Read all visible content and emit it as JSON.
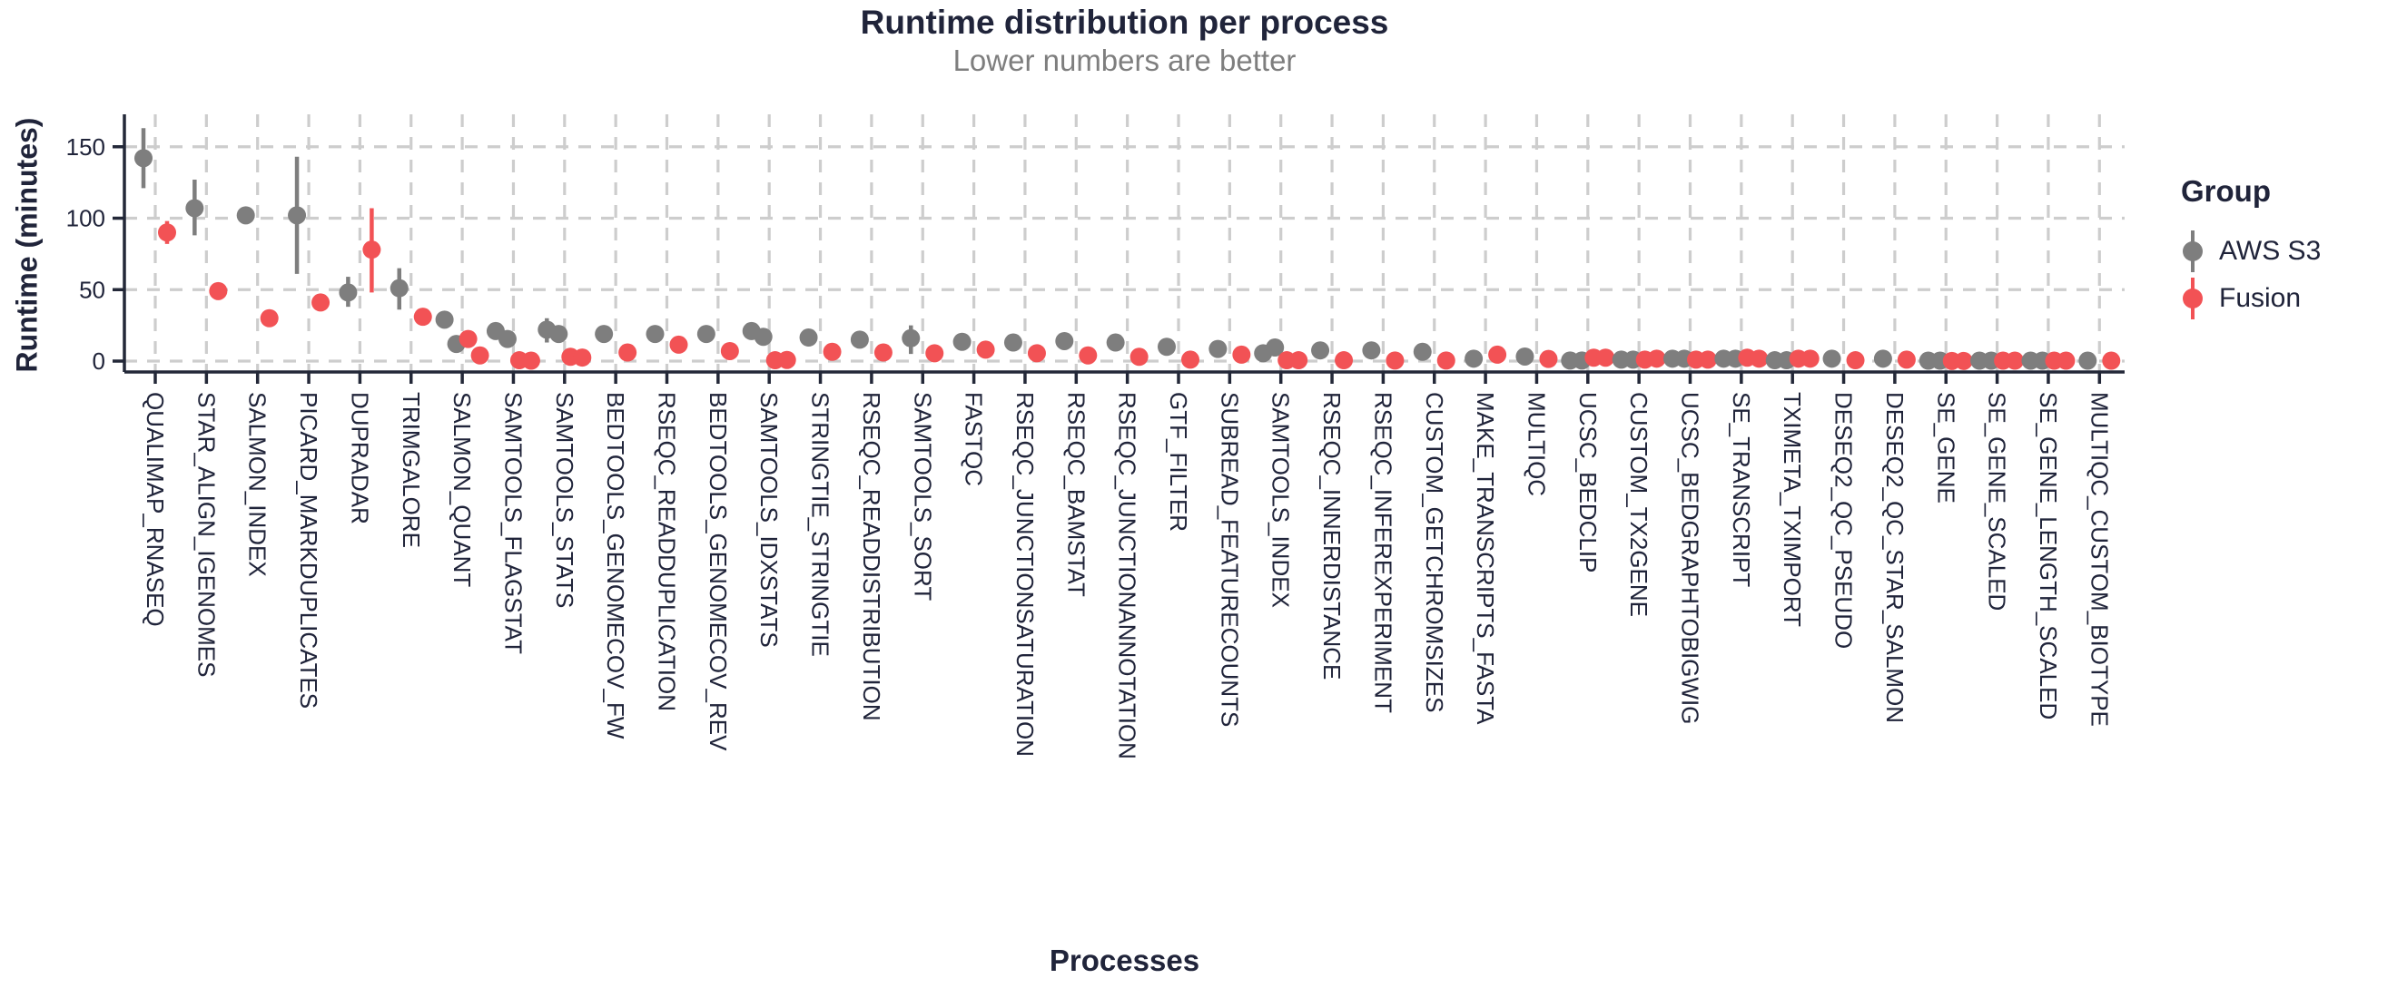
{
  "colors": {
    "aws_s3": "#7E7E7E",
    "fusion": "#F25255",
    "grid": "#CDCDCD",
    "axis": "#232838",
    "tick_label": "#20243A",
    "title": "#20243A",
    "subtitle": "#7E7E7E"
  },
  "chart_data": {
    "type": "scatter",
    "subtype": "dodged-pointrange",
    "title": "Runtime distribution per process",
    "subtitle": "Lower numbers are better",
    "xlabel": "Processes",
    "ylabel": "Runtime (minutes)",
    "y_ticks": [
      0,
      50,
      100,
      150
    ],
    "ylim": [
      0,
      172
    ],
    "grid": "dashed, major only",
    "legend": {
      "title": "Group",
      "position": "right",
      "entries": [
        {
          "label": "AWS S3",
          "color_key": "aws_s3"
        },
        {
          "label": "Fusion",
          "color_key": "fusion"
        }
      ]
    },
    "categories": [
      "QUALIMAP_RNASEQ",
      "STAR_ALIGN_IGENOMES",
      "SALMON_INDEX",
      "PICARD_MARKDUPLICATES",
      "DUPRADAR",
      "TRIMGALORE",
      "SALMON_QUANT",
      "SAMTOOLS_FLAGSTAT",
      "SAMTOOLS_STATS",
      "BEDTOOLS_GENOMECOV_FW",
      "RSEQC_READDUPLICATION",
      "BEDTOOLS_GENOMECOV_REV",
      "SAMTOOLS_IDXSTATS",
      "STRINGTIE_STRINGTIE",
      "RSEQC_READDISTRIBUTION",
      "SAMTOOLS_SORT",
      "FASTQC",
      "RSEQC_JUNCTIONSATURATION",
      "RSEQC_BAMSTAT",
      "RSEQC_JUNCTIONANNOTATION",
      "GTF_FILTER",
      "SUBREAD_FEATURECOUNTS",
      "SAMTOOLS_INDEX",
      "RSEQC_INNERDISTANCE",
      "RSEQC_INFEREXPERIMENT",
      "CUSTOM_GETCHROMSIZES",
      "MAKE_TRANSCRIPTS_FASTA",
      "MULTIQC",
      "UCSC_BEDCLIP",
      "CUSTOM_TX2GENE",
      "UCSC_BEDGRAPHTOBIGWIG",
      "SE_TRANSCRIPT",
      "TXIMETA_TXIMPORT",
      "DESEQ2_QC_PSEUDO",
      "DESEQ2_QC_STAR_SALMON",
      "SE_GENE",
      "SE_GENE_SCALED",
      "SE_GENE_LENGTH_SCALED",
      "MULTIQC_CUSTOM_BIOTYPE"
    ],
    "points": [
      {
        "process": "QUALIMAP_RNASEQ",
        "aws_s3": {
          "values": [
            142
          ],
          "range": [
            121,
            163
          ]
        },
        "fusion": {
          "values": [
            90
          ],
          "range": [
            82,
            98
          ]
        }
      },
      {
        "process": "STAR_ALIGN_IGENOMES",
        "aws_s3": {
          "values": [
            107
          ],
          "range": [
            88,
            127
          ]
        },
        "fusion": {
          "values": [
            49
          ]
        }
      },
      {
        "process": "SALMON_INDEX",
        "aws_s3": {
          "values": [
            102
          ]
        },
        "fusion": {
          "values": [
            30
          ]
        }
      },
      {
        "process": "PICARD_MARKDUPLICATES",
        "aws_s3": {
          "values": [
            102
          ],
          "range": [
            61,
            143
          ]
        },
        "fusion": {
          "values": [
            41
          ]
        }
      },
      {
        "process": "DUPRADAR",
        "aws_s3": {
          "values": [
            48
          ],
          "range": [
            38,
            59
          ]
        },
        "fusion": {
          "values": [
            78
          ],
          "range": [
            48,
            107
          ]
        }
      },
      {
        "process": "TRIMGALORE",
        "aws_s3": {
          "values": [
            51
          ],
          "range": [
            36,
            65
          ]
        },
        "fusion": {
          "values": [
            31
          ]
        }
      },
      {
        "process": "SALMON_QUANT",
        "aws_s3": {
          "values": [
            29,
            12
          ]
        },
        "fusion": {
          "values": [
            15.5,
            4
          ]
        }
      },
      {
        "process": "SAMTOOLS_FLAGSTAT",
        "aws_s3": {
          "values": [
            21,
            15.5
          ]
        },
        "fusion": {
          "values": [
            0.6,
            0.3
          ]
        }
      },
      {
        "process": "SAMTOOLS_STATS",
        "aws_s3": {
          "values": [
            22,
            19
          ],
          "range": [
            13,
            30
          ]
        },
        "fusion": {
          "values": [
            3,
            2.5
          ]
        }
      },
      {
        "process": "BEDTOOLS_GENOMECOV_FW",
        "aws_s3": {
          "values": [
            19
          ]
        },
        "fusion": {
          "values": [
            6
          ]
        }
      },
      {
        "process": "RSEQC_READDUPLICATION",
        "aws_s3": {
          "values": [
            19
          ]
        },
        "fusion": {
          "values": [
            11.5
          ]
        }
      },
      {
        "process": "BEDTOOLS_GENOMECOV_REV",
        "aws_s3": {
          "values": [
            19
          ]
        },
        "fusion": {
          "values": [
            7
          ]
        }
      },
      {
        "process": "SAMTOOLS_IDXSTATS",
        "aws_s3": {
          "values": [
            21,
            17
          ]
        },
        "fusion": {
          "values": [
            0.6,
            0.8
          ]
        }
      },
      {
        "process": "STRINGTIE_STRINGTIE",
        "aws_s3": {
          "values": [
            16.5
          ]
        },
        "fusion": {
          "values": [
            6.5
          ]
        }
      },
      {
        "process": "RSEQC_READDISTRIBUTION",
        "aws_s3": {
          "values": [
            15
          ]
        },
        "fusion": {
          "values": [
            6
          ]
        }
      },
      {
        "process": "SAMTOOLS_SORT",
        "aws_s3": {
          "values": [
            16
          ],
          "range": [
            5,
            25
          ]
        },
        "fusion": {
          "values": [
            5.5
          ]
        }
      },
      {
        "process": "FASTQC",
        "aws_s3": {
          "values": [
            13.5
          ]
        },
        "fusion": {
          "values": [
            8
          ]
        }
      },
      {
        "process": "RSEQC_JUNCTIONSATURATION",
        "aws_s3": {
          "values": [
            13
          ]
        },
        "fusion": {
          "values": [
            5.5
          ]
        }
      },
      {
        "process": "RSEQC_BAMSTAT",
        "aws_s3": {
          "values": [
            14
          ]
        },
        "fusion": {
          "values": [
            4
          ]
        }
      },
      {
        "process": "RSEQC_JUNCTIONANNOTATION",
        "aws_s3": {
          "values": [
            13
          ]
        },
        "fusion": {
          "values": [
            3
          ]
        }
      },
      {
        "process": "GTF_FILTER",
        "aws_s3": {
          "values": [
            10
          ]
        },
        "fusion": {
          "values": [
            1
          ]
        }
      },
      {
        "process": "SUBREAD_FEATURECOUNTS",
        "aws_s3": {
          "values": [
            8.5
          ]
        },
        "fusion": {
          "values": [
            4.5
          ]
        }
      },
      {
        "process": "SAMTOOLS_INDEX",
        "aws_s3": {
          "values": [
            5.5,
            9.5
          ]
        },
        "fusion": {
          "values": [
            0.6,
            0.6
          ]
        }
      },
      {
        "process": "RSEQC_INNERDISTANCE",
        "aws_s3": {
          "values": [
            7.5
          ]
        },
        "fusion": {
          "values": [
            0.6
          ]
        }
      },
      {
        "process": "RSEQC_INFEREXPERIMENT",
        "aws_s3": {
          "values": [
            7.5
          ]
        },
        "fusion": {
          "values": [
            0.4
          ]
        }
      },
      {
        "process": "CUSTOM_GETCHROMSIZES",
        "aws_s3": {
          "values": [
            6.5
          ]
        },
        "fusion": {
          "values": [
            0.4
          ]
        }
      },
      {
        "process": "MAKE_TRANSCRIPTS_FASTA",
        "aws_s3": {
          "values": [
            1.7
          ]
        },
        "fusion": {
          "values": [
            4.5
          ]
        }
      },
      {
        "process": "MULTIQC",
        "aws_s3": {
          "values": [
            3.2
          ]
        },
        "fusion": {
          "values": [
            1.5
          ]
        }
      },
      {
        "process": "UCSC_BEDCLIP",
        "aws_s3": {
          "values": [
            0.4,
            0.4
          ]
        },
        "fusion": {
          "values": [
            2.4,
            2.4
          ]
        }
      },
      {
        "process": "CUSTOM_TX2GENE",
        "aws_s3": {
          "values": [
            1,
            1
          ]
        },
        "fusion": {
          "values": [
            1,
            1.7
          ]
        }
      },
      {
        "process": "UCSC_BEDGRAPHTOBIGWIG",
        "aws_s3": {
          "values": [
            1.7,
            1.7
          ]
        },
        "fusion": {
          "values": [
            1,
            1
          ]
        }
      },
      {
        "process": "SE_TRANSCRIPT",
        "aws_s3": {
          "values": [
            1.7,
            1.7
          ]
        },
        "fusion": {
          "values": [
            2.4,
            1.7
          ]
        }
      },
      {
        "process": "TXIMETA_TXIMPORT",
        "aws_s3": {
          "values": [
            0.6,
            0.6
          ]
        },
        "fusion": {
          "values": [
            1.7,
            1.7
          ]
        }
      },
      {
        "process": "DESEQ2_QC_PSEUDO",
        "aws_s3": {
          "values": [
            1.7
          ]
        },
        "fusion": {
          "values": [
            0.6
          ]
        }
      },
      {
        "process": "DESEQ2_QC_STAR_SALMON",
        "aws_s3": {
          "values": [
            1.7
          ]
        },
        "fusion": {
          "values": [
            1
          ]
        }
      },
      {
        "process": "SE_GENE",
        "aws_s3": {
          "values": [
            0.3,
            0.3
          ]
        },
        "fusion": {
          "values": [
            0.1,
            0.1
          ]
        }
      },
      {
        "process": "SE_GENE_SCALED",
        "aws_s3": {
          "values": [
            0.3,
            0.3
          ]
        },
        "fusion": {
          "values": [
            0.3,
            0.3
          ]
        }
      },
      {
        "process": "SE_GENE_LENGTH_SCALED",
        "aws_s3": {
          "values": [
            0.3,
            0.3
          ]
        },
        "fusion": {
          "values": [
            0.3,
            0.3
          ]
        }
      },
      {
        "process": "MULTIQC_CUSTOM_BIOTYPE",
        "aws_s3": {
          "values": [
            0.3
          ]
        },
        "fusion": {
          "values": [
            0.3
          ]
        }
      }
    ]
  }
}
